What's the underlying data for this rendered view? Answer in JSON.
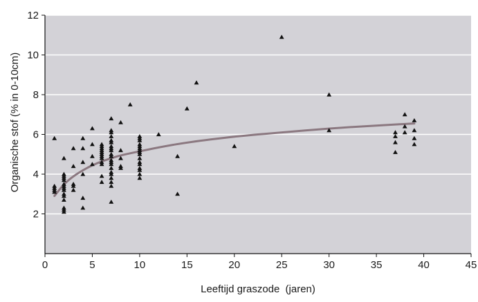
{
  "chart_data": {
    "type": "scatter",
    "xlabel": "Leeftijd graszode",
    "xlabel_unit": "(jaren)",
    "ylabel": "Organische stof (% in 0-10cm)",
    "xlim": [
      0,
      45
    ],
    "ylim": [
      0,
      12
    ],
    "x_ticks": [
      "0",
      "5",
      "10",
      "15",
      "20",
      "25",
      "30",
      "35",
      "40",
      "45"
    ],
    "y_ticks": [
      "2",
      "4",
      "6",
      "8",
      "10",
      "12"
    ],
    "grid": "horizontal",
    "colors": {
      "plot_background": "#d3d2d7",
      "gridline": "#ffffff",
      "marker": "#111111",
      "trend_line": "#8b7880",
      "axis": "#111111"
    },
    "series": [
      {
        "type": "scatter",
        "marker": "triangle",
        "points": [
          [
            1,
            5.8
          ],
          [
            1,
            3.4
          ],
          [
            1,
            3.3
          ],
          [
            1,
            3.2
          ],
          [
            1,
            3.1
          ],
          [
            2,
            4.8
          ],
          [
            2,
            4.0
          ],
          [
            2,
            3.9
          ],
          [
            2,
            3.8
          ],
          [
            2,
            3.7
          ],
          [
            2,
            3.5
          ],
          [
            2,
            3.4
          ],
          [
            2,
            3.3
          ],
          [
            2,
            3.2
          ],
          [
            2,
            3.0
          ],
          [
            2,
            2.9
          ],
          [
            2,
            2.7
          ],
          [
            2,
            2.3
          ],
          [
            2,
            2.2
          ],
          [
            2,
            2.1
          ],
          [
            3,
            5.3
          ],
          [
            3,
            4.4
          ],
          [
            3,
            3.5
          ],
          [
            3,
            3.4
          ],
          [
            3,
            3.2
          ],
          [
            4,
            5.8
          ],
          [
            4,
            5.3
          ],
          [
            4,
            4.6
          ],
          [
            4,
            4.0
          ],
          [
            4,
            2.8
          ],
          [
            4,
            2.3
          ],
          [
            5,
            6.3
          ],
          [
            5,
            5.5
          ],
          [
            5,
            4.9
          ],
          [
            5,
            4.5
          ],
          [
            6,
            5.5
          ],
          [
            6,
            5.4
          ],
          [
            6,
            5.3
          ],
          [
            6,
            5.2
          ],
          [
            6,
            5.1
          ],
          [
            6,
            5.0
          ],
          [
            6,
            4.9
          ],
          [
            6,
            4.8
          ],
          [
            6,
            4.6
          ],
          [
            6,
            4.5
          ],
          [
            6,
            3.9
          ],
          [
            6,
            3.6
          ],
          [
            7,
            6.8
          ],
          [
            7,
            6.2
          ],
          [
            7,
            6.1
          ],
          [
            7,
            5.9
          ],
          [
            7,
            5.7
          ],
          [
            7,
            5.6
          ],
          [
            7,
            5.4
          ],
          [
            7,
            5.3
          ],
          [
            7,
            5.2
          ],
          [
            7,
            5.0
          ],
          [
            7,
            4.9
          ],
          [
            7,
            4.7
          ],
          [
            7,
            4.6
          ],
          [
            7,
            4.5
          ],
          [
            7,
            4.3
          ],
          [
            7,
            4.1
          ],
          [
            7,
            4.0
          ],
          [
            7,
            3.8
          ],
          [
            7,
            3.6
          ],
          [
            7,
            3.4
          ],
          [
            7,
            2.6
          ],
          [
            8,
            6.6
          ],
          [
            8,
            5.2
          ],
          [
            8,
            4.8
          ],
          [
            8,
            4.4
          ],
          [
            8,
            4.3
          ],
          [
            9,
            7.5
          ],
          [
            10,
            5.9
          ],
          [
            10,
            5.8
          ],
          [
            10,
            5.7
          ],
          [
            10,
            5.5
          ],
          [
            10,
            5.4
          ],
          [
            10,
            5.3
          ],
          [
            10,
            5.2
          ],
          [
            10,
            5.1
          ],
          [
            10,
            5.0
          ],
          [
            10,
            4.8
          ],
          [
            10,
            4.6
          ],
          [
            10,
            4.5
          ],
          [
            10,
            4.3
          ],
          [
            10,
            4.2
          ],
          [
            10,
            4.0
          ],
          [
            10,
            3.8
          ],
          [
            12,
            6.0
          ],
          [
            14,
            4.9
          ],
          [
            14,
            3.0
          ],
          [
            15,
            7.3
          ],
          [
            16,
            8.6
          ],
          [
            20,
            5.4
          ],
          [
            25,
            10.9
          ],
          [
            30,
            8.0
          ],
          [
            30,
            6.2
          ],
          [
            37,
            6.1
          ],
          [
            37,
            5.9
          ],
          [
            37,
            5.6
          ],
          [
            37,
            5.1
          ],
          [
            38,
            7.0
          ],
          [
            38,
            6.4
          ],
          [
            38,
            6.1
          ],
          [
            39,
            6.7
          ],
          [
            39,
            6.2
          ],
          [
            39,
            5.8
          ],
          [
            39,
            5.5
          ]
        ]
      },
      {
        "type": "line",
        "style": "smooth-trend",
        "points": [
          [
            1,
            2.9
          ],
          [
            2,
            3.5
          ],
          [
            3,
            3.9
          ],
          [
            4,
            4.2
          ],
          [
            5,
            4.45
          ],
          [
            6,
            4.65
          ],
          [
            7,
            4.8
          ],
          [
            8,
            4.95
          ],
          [
            10,
            5.15
          ],
          [
            12,
            5.35
          ],
          [
            15,
            5.6
          ],
          [
            20,
            5.9
          ],
          [
            25,
            6.1
          ],
          [
            30,
            6.3
          ],
          [
            35,
            6.45
          ],
          [
            39,
            6.55
          ]
        ]
      }
    ]
  }
}
